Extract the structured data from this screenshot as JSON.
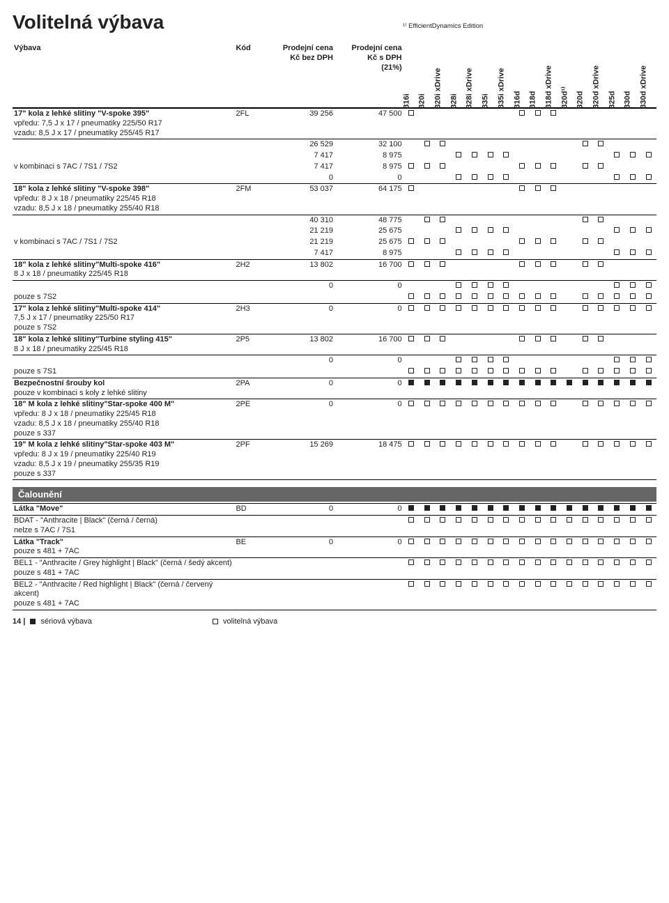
{
  "page": {
    "title": "Volitelná výbava",
    "topnote": "¹⁾ EfficientDynamics Edition",
    "headers": {
      "desc": "Výbava",
      "code": "Kód",
      "priceEx": "Prodejní cena\nKč bez DPH",
      "priceInc": "Prodejní cena\nKč s DPH\n(21%)"
    },
    "models": [
      "316i",
      "320i",
      "320i xDrive",
      "328i",
      "328i xDrive",
      "335i",
      "335i xDrive",
      "316d",
      "318d",
      "318d xDrive",
      "320d¹⁾",
      "320d",
      "320d xDrive",
      "325d",
      "330d",
      "330d xDrive"
    ],
    "rows": [
      {
        "sep": true,
        "desc": "<span class='title'>17\" kola z lehké slitiny \"V-spoke 395\"</span><span class='note'>vpředu: 7,5 J x 17 / pneumatiky 225/50 R17</span><span class='note'>vzadu: 8,5 J x 17 / pneumatiky 255/45 R17</span>",
        "code": "2FL",
        "pex": "39 256",
        "pinc": "47 500",
        "marks": [
          "o",
          "",
          "",
          "",
          "",
          "",
          "",
          "o",
          "o",
          "o",
          "",
          "",
          "",
          "",
          "",
          ""
        ]
      },
      {
        "desc": "",
        "pex": "26 529",
        "pinc": "32 100",
        "marks": [
          "",
          "o",
          "o",
          "",
          "",
          "",
          "",
          "",
          "",
          "",
          "",
          "o",
          "o",
          "",
          "",
          ""
        ]
      },
      {
        "desc": "",
        "pex": "7 417",
        "pinc": "8 975",
        "marks": [
          "",
          "",
          "",
          "o",
          "o",
          "o",
          "o",
          "",
          "",
          "",
          "",
          "",
          "",
          "o",
          "o",
          "o"
        ]
      },
      {
        "desc": "v kombinaci s 7AC / 7S1 / 7S2",
        "pex": "7 417",
        "pinc": "8 975",
        "marks": [
          "o",
          "o",
          "o",
          "",
          "",
          "",
          "",
          "o",
          "o",
          "o",
          "",
          "o",
          "o",
          "",
          "",
          ""
        ]
      },
      {
        "sep": true,
        "desc": "",
        "pex": "0",
        "pinc": "0",
        "marks": [
          "",
          "",
          "",
          "o",
          "o",
          "o",
          "o",
          "",
          "",
          "",
          "",
          "",
          "",
          "o",
          "o",
          "o"
        ]
      },
      {
        "sep": true,
        "desc": "<span class='title'>18\" kola z lehké slitiny \"V-spoke 398\"</span><span class='note'>vpředu: 8 J x 18 / pneumatiky 225/45 R18</span><span class='note'>vzadu: 8,5 J x 18 / pneumatiky 255/40 R18</span>",
        "code": "2FM",
        "pex": "53 037",
        "pinc": "64 175",
        "marks": [
          "o",
          "",
          "",
          "",
          "",
          "",
          "",
          "o",
          "o",
          "o",
          "",
          "",
          "",
          "",
          "",
          ""
        ]
      },
      {
        "desc": "",
        "pex": "40 310",
        "pinc": "48 775",
        "marks": [
          "",
          "o",
          "o",
          "",
          "",
          "",
          "",
          "",
          "",
          "",
          "",
          "o",
          "o",
          "",
          "",
          ""
        ]
      },
      {
        "desc": "",
        "pex": "21 219",
        "pinc": "25 675",
        "marks": [
          "",
          "",
          "",
          "o",
          "o",
          "o",
          "o",
          "",
          "",
          "",
          "",
          "",
          "",
          "o",
          "o",
          "o"
        ]
      },
      {
        "desc": "v kombinaci s 7AC / 7S1 / 7S2",
        "pex": "21 219",
        "pinc": "25 675",
        "marks": [
          "o",
          "o",
          "o",
          "",
          "",
          "",
          "",
          "o",
          "o",
          "o",
          "",
          "o",
          "o",
          "",
          "",
          ""
        ]
      },
      {
        "sep": true,
        "desc": "",
        "pex": "7 417",
        "pinc": "8 975",
        "marks": [
          "",
          "",
          "",
          "o",
          "o",
          "o",
          "o",
          "",
          "",
          "",
          "",
          "",
          "",
          "o",
          "o",
          "o"
        ]
      },
      {
        "sep": true,
        "desc": "<span class='title'>18\" kola z lehké slitiny</span><span class='title'>\"Multi-spoke 416\"</span><span class='note'>8 J x 18 / pneumatiky 225/45 R18</span>",
        "code": "2H2",
        "pex": "13 802",
        "pinc": "16 700",
        "marks": [
          "o",
          "o",
          "o",
          "",
          "",
          "",
          "",
          "o",
          "o",
          "o",
          "",
          "o",
          "o",
          "",
          "",
          ""
        ]
      },
      {
        "desc": "",
        "pex": "0",
        "pinc": "0",
        "marks": [
          "",
          "",
          "",
          "o",
          "o",
          "o",
          "o",
          "",
          "",
          "",
          "",
          "",
          "",
          "o",
          "o",
          "o"
        ]
      },
      {
        "sep": true,
        "desc": "pouze s 7S2",
        "marks": [
          "o",
          "o",
          "o",
          "o",
          "o",
          "o",
          "o",
          "o",
          "o",
          "o",
          "",
          "o",
          "o",
          "o",
          "o",
          "o"
        ]
      },
      {
        "sep": true,
        "desc": "<span class='title'>17\" kola z lehké slitiny</span><span class='title'>\"Multi-spoke 414\"</span><span class='note'>7,5 J x 17 / pneumatiky 225/50 R17</span><span class='note'>pouze s 7S2</span>",
        "code": "2H3",
        "pex": "0",
        "pinc": "0",
        "marks": [
          "o",
          "o",
          "o",
          "o",
          "o",
          "o",
          "o",
          "o",
          "o",
          "o",
          "",
          "o",
          "o",
          "o",
          "o",
          "o"
        ]
      },
      {
        "sep": true,
        "desc": "<span class='title'>18\" kola z lehké slitiny</span><span class='title'>\"Turbine styling 415\"</span><span class='note'>8 J x 18 / pneumatiky 225/45 R18</span>",
        "code": "2P5",
        "pex": "13 802",
        "pinc": "16 700",
        "marks": [
          "o",
          "o",
          "o",
          "",
          "",
          "",
          "",
          "o",
          "o",
          "o",
          "",
          "o",
          "o",
          "",
          "",
          ""
        ]
      },
      {
        "desc": "",
        "pex": "0",
        "pinc": "0",
        "marks": [
          "",
          "",
          "",
          "o",
          "o",
          "o",
          "o",
          "",
          "",
          "",
          "",
          "",
          "",
          "o",
          "o",
          "o"
        ]
      },
      {
        "sep": true,
        "desc": "pouze s 7S1",
        "marks": [
          "o",
          "o",
          "o",
          "o",
          "o",
          "o",
          "o",
          "o",
          "o",
          "o",
          "",
          "o",
          "o",
          "o",
          "o",
          "o"
        ]
      },
      {
        "sep": true,
        "desc": "<span class='title'>Bezpečnostní šrouby kol</span><span class='note'>pouze v kombinaci s koly z lehké slitiny</span>",
        "code": "2PA",
        "pex": "0",
        "pinc": "0",
        "marks": [
          "f",
          "f",
          "f",
          "f",
          "f",
          "f",
          "f",
          "f",
          "f",
          "f",
          "f",
          "f",
          "f",
          "f",
          "f",
          "f"
        ]
      },
      {
        "sep": true,
        "desc": "<span class='title'>18\" M kola z lehké slitiny</span><span class='title'>\"Star-spoke 400 M\"</span><span class='note'>vpředu: 8 J x 18 / pneumatiky 225/45 R18</span><span class='note'>vzadu: 8,5 J x 18 / pneumatiky 255/40 R18</span><span class='note'>pouze s 337</span>",
        "code": "2PE",
        "pex": "0",
        "pinc": "0",
        "marks": [
          "o",
          "o",
          "o",
          "o",
          "o",
          "o",
          "o",
          "o",
          "o",
          "o",
          "",
          "o",
          "o",
          "o",
          "o",
          "o"
        ]
      },
      {
        "sep": true,
        "desc": "<span class='title'>19\" M kola z lehké slitiny</span><span class='title'>\"Star-spoke 403 M\"</span><span class='note'>vpředu: 8 J x 19 / pneumatiky 225/40 R19</span><span class='note'>vzadu: 8,5 J x 19 / pneumatiky 255/35 R19</span><span class='note'>pouze s 337</span>",
        "code": "2PF",
        "pex": "15 269",
        "pinc": "18 475",
        "marks": [
          "o",
          "o",
          "o",
          "o",
          "o",
          "o",
          "o",
          "o",
          "o",
          "o",
          "",
          "o",
          "o",
          "o",
          "o",
          "o"
        ]
      }
    ],
    "section2": {
      "title": "Čalounění",
      "rows": [
        {
          "sep": true,
          "desc": "<span class='title'>Látka \"Move\"</span>",
          "code": "BD",
          "pex": "0",
          "pinc": "0",
          "marks": [
            "f",
            "f",
            "f",
            "f",
            "f",
            "f",
            "f",
            "f",
            "f",
            "f",
            "f",
            "f",
            "f",
            "f",
            "f",
            "f"
          ]
        },
        {
          "sep": true,
          "desc": "BDAT - \"Anthracite | Black\" (černá / černá)<br>nelze s 7AC / 7S1",
          "marks": [
            "o",
            "o",
            "o",
            "o",
            "o",
            "o",
            "o",
            "o",
            "o",
            "o",
            "o",
            "o",
            "o",
            "o",
            "o",
            "o"
          ]
        },
        {
          "sep": true,
          "desc": "<span class='title'>Látka \"Track\"</span><span class='note'>pouze s 481 + 7AC</span>",
          "code": "BE",
          "pex": "0",
          "pinc": "0",
          "marks": [
            "o",
            "o",
            "o",
            "o",
            "o",
            "o",
            "o",
            "o",
            "o",
            "o",
            "o",
            "o",
            "o",
            "o",
            "o",
            "o"
          ]
        },
        {
          "sep": true,
          "desc": "BEL1 - \"Anthracite / Grey highlight | Black\" (černá / šedý akcent)<br>pouze s 481 + 7AC",
          "marks": [
            "o",
            "o",
            "o",
            "o",
            "o",
            "o",
            "o",
            "o",
            "o",
            "o",
            "o",
            "o",
            "o",
            "o",
            "o",
            "o"
          ]
        },
        {
          "sep": true,
          "desc": "BEL2 - \"Anthracite / Red highlight | Black\" (černá / červený akcent)<br>pouze s 481 + 7AC",
          "marks": [
            "o",
            "o",
            "o",
            "o",
            "o",
            "o",
            "o",
            "o",
            "o",
            "o",
            "o",
            "o",
            "o",
            "o",
            "o",
            "o"
          ]
        }
      ]
    },
    "footer": {
      "page": "14 |",
      "std": "sériová výbava",
      "opt": "volitelná výbava"
    }
  }
}
